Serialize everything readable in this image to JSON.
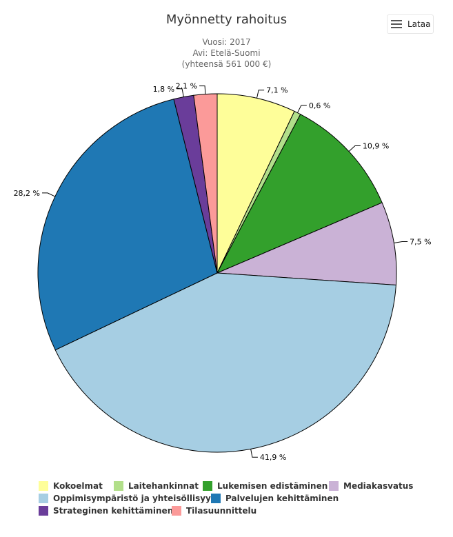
{
  "header": {
    "title": "Myönnetty rahoitus",
    "subtitle_lines": [
      "Vuosi: 2017",
      "Avi: Etelä-Suomi",
      "(yhteensä 561 000 €)"
    ]
  },
  "menu": {
    "label": "Lataa",
    "icon": "hamburger-icon"
  },
  "chart_data": {
    "type": "pie",
    "title": "Myönnetty rahoitus",
    "subtitle": "Vuosi: 2017 / Avi: Etelä-Suomi / (yhteensä 561 000 €)",
    "legend_position": "bottom",
    "slices": [
      {
        "name": "Kokoelmat",
        "value": 7.1,
        "label": "7,1 %",
        "color": "#fefe99"
      },
      {
        "name": "Laitehankinnat",
        "value": 0.6,
        "label": "0,6 %",
        "color": "#b2df8a"
      },
      {
        "name": "Lukemisen edistäminen",
        "value": 10.9,
        "label": "10,9 %",
        "color": "#33a02c"
      },
      {
        "name": "Mediakasvatus",
        "value": 7.5,
        "label": "7,5 %",
        "color": "#cab2d6"
      },
      {
        "name": "Oppimisympäristö ja yhteisöllisyys",
        "value": 41.9,
        "label": "41,9 %",
        "color": "#a6cee3"
      },
      {
        "name": "Palvelujen kehittäminen",
        "value": 28.2,
        "label": "28,2 %",
        "color": "#1f78b4"
      },
      {
        "name": "Strateginen kehittäminen",
        "value": 1.8,
        "label": "1,8 %",
        "color": "#6a3d9a"
      },
      {
        "name": "Tilasuunnittelu",
        "value": 2.1,
        "label": "2,1 %",
        "color": "#fb9a99"
      }
    ]
  }
}
